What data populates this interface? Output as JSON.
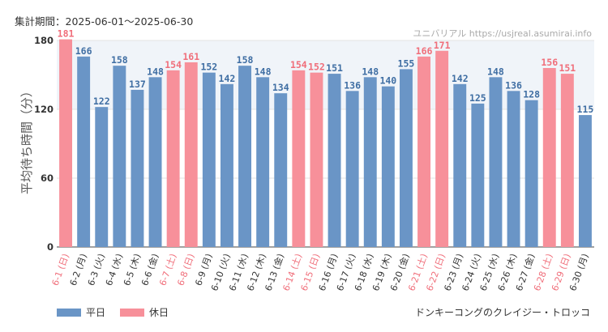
{
  "header": {
    "period_label": "集計期間：2025-06-01～2025-06-30",
    "brand": "ユニバリアル  https://usjreal.asumirai.info"
  },
  "legend": {
    "weekday_label": "平日",
    "holiday_label": "休日"
  },
  "attraction_name": "ドンキーコングのクレイジー・トロッコ",
  "colors": {
    "weekday": "#6a95c6",
    "holiday": "#f7909a",
    "weekday_text": "#3f6ea3",
    "holiday_text": "#f06e7a",
    "grid": "#e3e3e3",
    "band": "#f0f4f9"
  },
  "chart_data": {
    "type": "bar",
    "ylabel": "平均待ち時間（分）",
    "ylim": [
      0,
      180
    ],
    "yticks": [
      0,
      60,
      120,
      180
    ],
    "categories": [
      "6-1 (日)",
      "6-2 (月)",
      "6-3 (火)",
      "6-4 (水)",
      "6-5 (木)",
      "6-6 (金)",
      "6-7 (土)",
      "6-8 (日)",
      "6-9 (月)",
      "6-10 (火)",
      "6-11 (水)",
      "6-12 (木)",
      "6-13 (金)",
      "6-14 (土)",
      "6-15 (日)",
      "6-16 (月)",
      "6-17 (火)",
      "6-18 (水)",
      "6-19 (木)",
      "6-20 (金)",
      "6-21 (土)",
      "6-22 (日)",
      "6-23 (月)",
      "6-24 (火)",
      "6-25 (水)",
      "6-26 (木)",
      "6-27 (金)",
      "6-28 (土)",
      "6-29 (日)",
      "6-30 (月)"
    ],
    "values": [
      181,
      166,
      122,
      158,
      137,
      148,
      154,
      161,
      152,
      142,
      158,
      148,
      134,
      154,
      152,
      151,
      136,
      148,
      140,
      155,
      166,
      171,
      142,
      125,
      148,
      136,
      128,
      156,
      151,
      115
    ],
    "day_type": [
      "holiday",
      "weekday",
      "weekday",
      "weekday",
      "weekday",
      "weekday",
      "holiday",
      "holiday",
      "weekday",
      "weekday",
      "weekday",
      "weekday",
      "weekday",
      "holiday",
      "holiday",
      "weekday",
      "weekday",
      "weekday",
      "weekday",
      "weekday",
      "holiday",
      "holiday",
      "weekday",
      "weekday",
      "weekday",
      "weekday",
      "weekday",
      "holiday",
      "holiday",
      "weekday"
    ],
    "series": [
      {
        "name": "平日"
      },
      {
        "name": "休日"
      }
    ],
    "legend_position": "bottom-left",
    "grid": true
  }
}
